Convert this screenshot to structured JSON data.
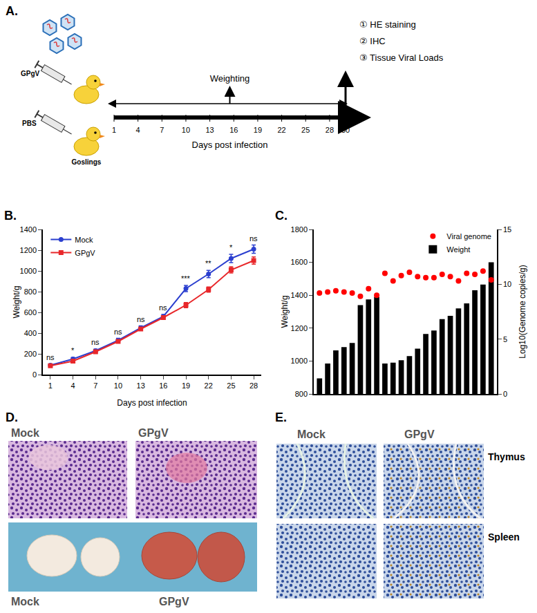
{
  "panel_labels": [
    "A.",
    "B.",
    "C.",
    "D.",
    "E."
  ],
  "schematic": {
    "virus_label": "GPgV",
    "control_label": "PBS",
    "animal_label": "Goslings",
    "event_label": "Weighting",
    "axis_title": "Days post infection",
    "assays": [
      "① HE staining",
      "② IHC",
      "③ Tissue Viral Loads"
    ],
    "days": [
      1,
      4,
      7,
      10,
      13,
      16,
      19,
      22,
      25,
      28,
      30
    ]
  },
  "chart_data": [
    {
      "type": "line",
      "x": [
        1,
        4,
        7,
        10,
        13,
        16,
        19,
        22,
        25,
        28
      ],
      "xlim": [
        0,
        29
      ],
      "xticks": [
        1,
        4,
        7,
        10,
        13,
        16,
        19,
        22,
        25,
        28
      ],
      "ylim": [
        0,
        1400
      ],
      "yticks": [
        0,
        200,
        400,
        600,
        800,
        1000,
        1200,
        1400
      ],
      "x_label": "Days post infection",
      "y_label": "Weight/g",
      "legend": "upper left",
      "grid": false,
      "series": [
        {
          "name": "Mock",
          "color": "#2b3fcf",
          "marker": "circle",
          "values": [
            90,
            150,
            230,
            330,
            450,
            560,
            830,
            970,
            1120,
            1210
          ],
          "errors": [
            10,
            15,
            15,
            20,
            20,
            20,
            30,
            35,
            40,
            40
          ]
        },
        {
          "name": "GPgV",
          "color": "#e8272a",
          "marker": "square",
          "values": [
            85,
            130,
            220,
            320,
            440,
            550,
            670,
            820,
            1010,
            1100
          ],
          "errors": [
            8,
            12,
            12,
            15,
            15,
            18,
            25,
            25,
            30,
            35
          ]
        }
      ],
      "significance": [
        "ns",
        "*",
        "ns",
        "ns",
        "ns",
        "ns",
        "***",
        "**",
        "*",
        "ns"
      ]
    },
    {
      "type": "bar",
      "categories": [
        null,
        null,
        null,
        null,
        null,
        null,
        null,
        null,
        null,
        null,
        null,
        null,
        null,
        null,
        null,
        null,
        null,
        null,
        null,
        null,
        null,
        null
      ],
      "ylim": [
        800,
        1800
      ],
      "yticks": [
        800,
        1000,
        1200,
        1400,
        1600,
        1800
      ],
      "y2lim": [
        0,
        15
      ],
      "y2ticks": [
        0,
        5,
        10,
        15
      ],
      "y_label": "Weight/g",
      "y2_label": "Log10(Genome copies/g)",
      "legend": "upper right",
      "grid": false,
      "series": [
        {
          "name": "Viral genome",
          "type": "scatter",
          "axis": "y2",
          "color": "#ff0000",
          "marker": "circle",
          "values": [
            9.2,
            9.3,
            9.4,
            9.3,
            9.2,
            8.9,
            9.6,
            9.0,
            11.0,
            10.3,
            10.8,
            11.1,
            10.7,
            10.6,
            10.6,
            10.9,
            10.7,
            10.3,
            11.0,
            10.9,
            11.2,
            10.4
          ]
        },
        {
          "name": "Weight",
          "type": "bar",
          "color": "#000000",
          "values": [
            895,
            985,
            1065,
            1085,
            1110,
            1340,
            1375,
            1390,
            985,
            990,
            1005,
            1030,
            1075,
            1165,
            1185,
            1255,
            1275,
            1320,
            1350,
            1430,
            1465,
            1600
          ]
        }
      ]
    }
  ],
  "histology": {
    "groups": [
      "Mock",
      "GPgV"
    ],
    "ihc_tissues": [
      "Thymus",
      "Spleen"
    ]
  }
}
